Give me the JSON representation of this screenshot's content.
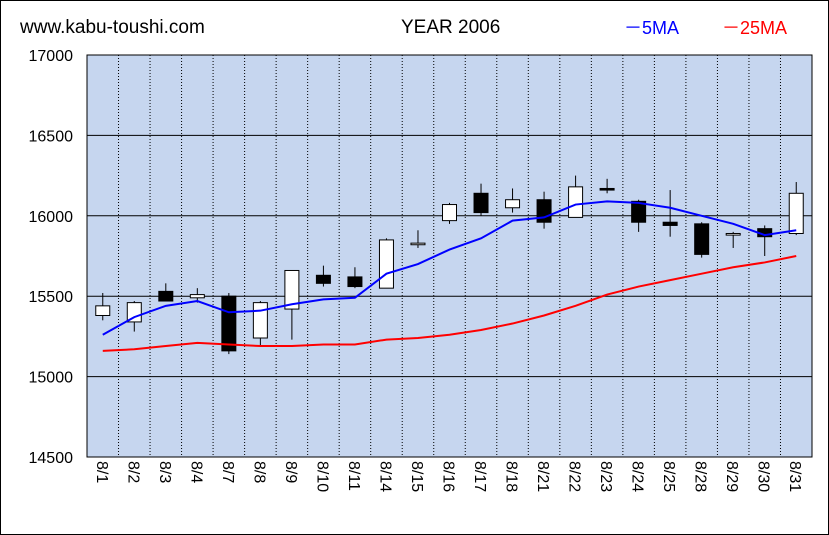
{
  "header": {
    "site": "www.kabu-toushi.com",
    "title": "YEAR 2006",
    "legend_5ma": "－5MA",
    "legend_25ma": "－25MA"
  },
  "colors": {
    "plot_background": "#c6d6ef",
    "ma5": "#0000ff",
    "ma25": "#ff0000",
    "up_candle": "#ffffff",
    "down_candle": "#000000",
    "grid": "#000000"
  },
  "chart_data": {
    "type": "candlestick",
    "title": "YEAR 2006",
    "ylim": [
      14500,
      17000
    ],
    "yticks": [
      14500,
      15000,
      15500,
      16000,
      16500,
      17000
    ],
    "grid": "vertical",
    "legend_position": "top-right",
    "categories": [
      "8/1",
      "8/2",
      "8/3",
      "8/4",
      "8/7",
      "8/8",
      "8/9",
      "8/10",
      "8/11",
      "8/14",
      "8/15",
      "8/16",
      "8/17",
      "8/18",
      "8/21",
      "8/22",
      "8/23",
      "8/24",
      "8/25",
      "8/28",
      "8/29",
      "8/30",
      "8/31"
    ],
    "open": [
      15380,
      15340,
      15530,
      15490,
      15500,
      15240,
      15420,
      15630,
      15620,
      15550,
      15820,
      15970,
      16140,
      16050,
      16100,
      15990,
      16170,
      16090,
      15960,
      15950,
      15880,
      15920,
      15890
    ],
    "high": [
      15520,
      15470,
      15580,
      15550,
      15520,
      15470,
      15660,
      15690,
      15680,
      15860,
      15910,
      16080,
      16200,
      16170,
      16150,
      16250,
      16230,
      16100,
      16160,
      15960,
      15900,
      15940,
      16210
    ],
    "low": [
      15350,
      15280,
      15470,
      15460,
      15140,
      15190,
      15230,
      15560,
      15550,
      15550,
      15800,
      15950,
      16000,
      16020,
      15920,
      15990,
      16140,
      15900,
      15870,
      15740,
      15800,
      15750,
      15880
    ],
    "close": [
      15440,
      15460,
      15470,
      15510,
      15160,
      15460,
      15660,
      15580,
      15560,
      15850,
      15830,
      16070,
      16020,
      16100,
      15960,
      16180,
      16160,
      15960,
      15940,
      15760,
      15890,
      15870,
      16140
    ],
    "series": [
      {
        "name": "5MA",
        "color": "#0000ff",
        "values": [
          15260,
          15370,
          15440,
          15470,
          15400,
          15410,
          15450,
          15480,
          15490,
          15640,
          15700,
          15790,
          15860,
          15970,
          15990,
          16070,
          16090,
          16080,
          16050,
          16000,
          15950,
          15880,
          15910
        ]
      },
      {
        "name": "25MA",
        "color": "#ff0000",
        "values": [
          15160,
          15170,
          15190,
          15210,
          15200,
          15190,
          15190,
          15200,
          15200,
          15230,
          15240,
          15260,
          15290,
          15330,
          15380,
          15440,
          15510,
          15560,
          15600,
          15640,
          15680,
          15710,
          15750
        ]
      }
    ]
  }
}
